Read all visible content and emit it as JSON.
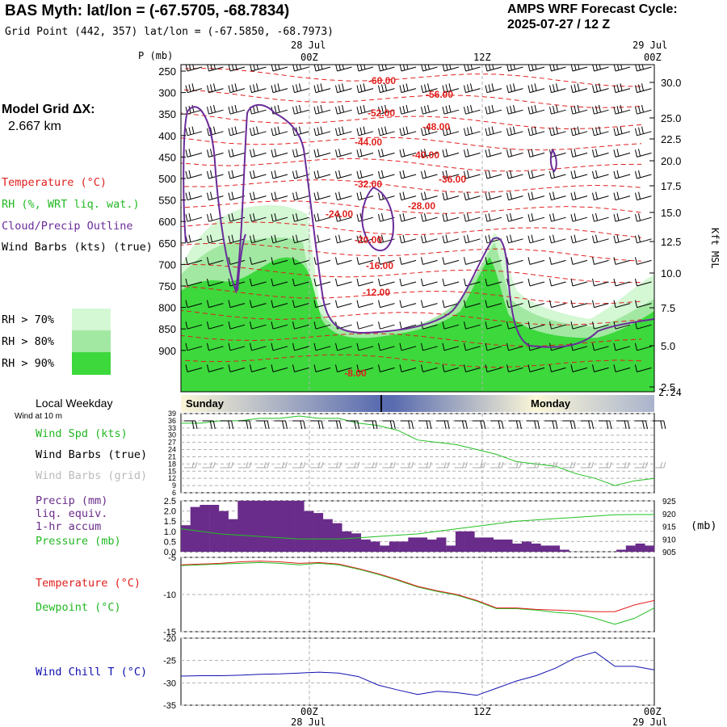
{
  "header": {
    "station_title": "BAS Myth:  lat/lon = (-67.5705, -68.7834)",
    "grid_point": "Grid Point (442, 357) lat/lon = (-67.5850, -68.7973)",
    "forecast_label": "AMPS WRF Forecast Cycle:",
    "forecast_cycle": "2025-07-27 / 12  Z",
    "model_grid_label": "Model Grid ΔX:",
    "model_grid_value": "2.667 km"
  },
  "time_axis": {
    "date_labels": [
      "28 Jul",
      "29 Jul"
    ],
    "hour_labels": [
      "00Z",
      "12Z",
      "00Z"
    ]
  },
  "legend": {
    "temperature": "Temperature (°C)",
    "rh": "RH (%, WRT liq. wat.)",
    "cloud": "Cloud/Precip Outline",
    "wind_barbs": "Wind Barbs (kts) (true)",
    "rh_levels": [
      "RH > 70%",
      "RH > 80%",
      "RH > 90%"
    ]
  },
  "colors": {
    "rh70": "#d4f7d4",
    "rh80": "#a2e8a2",
    "rh90": "#3cd83c",
    "temperature": "#e0201e",
    "dewpoint": "#22c022",
    "cloud": "#6a2c9a",
    "windchill": "#1010b0",
    "precip": "#6a2c8a",
    "pressure_line": "#22c022"
  },
  "chart_data": [
    {
      "type": "contour",
      "name": "cross-section",
      "y_axis_title": "P (mb)",
      "pressure_ticks": [
        "250",
        "300",
        "350",
        "400",
        "450",
        "500",
        "550",
        "600",
        "650",
        "700",
        "750",
        "800",
        "850",
        "900"
      ],
      "right_axis_title": "Kft MSL",
      "height_ticks": [
        "30.0",
        "25.0",
        "22.5",
        "20.0",
        "17.5",
        "15.0",
        "12.5",
        "10.0",
        "7.5",
        "5.0",
        "2.5"
      ],
      "surface_height": "2.24",
      "temperature_labels": [
        "-60.00",
        "-56.00",
        "-52.00",
        "-48.00",
        "-44.00",
        "-40.00",
        "-36.00",
        "-32.00",
        "-28.00",
        "-24.00",
        "-20.00",
        "-16.00",
        "-12.00",
        "-8.00"
      ]
    },
    {
      "type": "bar",
      "name": "local-weekday",
      "label": "Local Weekday",
      "days": [
        "Sunday",
        "Monday"
      ]
    },
    {
      "type": "line",
      "name": "wind-10m",
      "subtitle": "Wind at 10 m",
      "ylabel_speed": "Wind Spd (kts)",
      "ylabel_true": "Wind Barbs (true)",
      "ylabel_grid": "Wind Barbs (grid)",
      "ylim": [
        6,
        39
      ],
      "yticks": [
        "39",
        "36",
        "33",
        "30",
        "27",
        "24",
        "21",
        "18",
        "15",
        "12",
        "9",
        "6"
      ],
      "x": [
        0,
        1,
        2,
        3,
        4,
        5,
        6,
        7,
        8,
        9,
        10,
        11,
        12,
        13,
        14,
        15,
        16,
        17,
        18,
        19,
        20,
        21,
        22,
        23,
        24
      ],
      "speed": [
        35,
        35,
        36,
        36,
        37,
        37,
        38,
        37,
        37,
        35,
        34,
        32,
        28,
        27,
        26,
        24,
        22,
        19,
        18,
        17,
        14,
        12,
        9,
        11,
        12
      ]
    },
    {
      "type": "bar",
      "name": "precip-pressure",
      "ylabel_precip": [
        "Precip (mm)",
        "liq. equiv.",
        "1-hr accum"
      ],
      "ylabel_pressure": "Pressure (mb)",
      "pressure_unit": "(mb)",
      "precip_ticks": [
        "2.5",
        "2.0",
        "1.5",
        "1.0",
        "0.5",
        "0.0"
      ],
      "pressure_ticks": [
        "925",
        "920",
        "915",
        "910",
        "905"
      ],
      "precip_ylim": [
        0,
        2.5
      ],
      "pressure_ylim": [
        905,
        925
      ],
      "precip": [
        1.3,
        2.2,
        2.3,
        2.3,
        2.0,
        1.6,
        2.5,
        2.5,
        2.5,
        2.5,
        2.5,
        2.5,
        2.5,
        2.0,
        1.9,
        1.6,
        1.4,
        1.0,
        0.9,
        0.6,
        0.5,
        0.3,
        0.5,
        0.5,
        0.7,
        0.7,
        0.6,
        0.7,
        0.3,
        1.0,
        1.0,
        0.7,
        0.7,
        0.6,
        0.6,
        0.4,
        0.5,
        0.4,
        0.3,
        0.3,
        0.1,
        0.0,
        0.0,
        0.0,
        0.0,
        0.0,
        0.1,
        0.3,
        0.4,
        0.3
      ],
      "pressure": [
        914,
        913,
        912,
        911.5,
        911,
        910.5,
        910,
        910,
        910,
        910.5,
        911,
        911.5,
        912,
        913,
        914,
        915,
        916,
        917,
        917.5,
        918,
        918.5,
        919,
        919.5,
        919.6,
        919.6
      ]
    },
    {
      "type": "line",
      "name": "temperature-dewpoint",
      "series_labels": [
        "Temperature (°C)",
        "Dewpoint (°C)"
      ],
      "yticks": [
        "-5",
        "-10",
        "-15"
      ],
      "ylim": [
        -15,
        -5
      ],
      "x": [
        0,
        1,
        2,
        3,
        4,
        5,
        6,
        7,
        8,
        9,
        10,
        11,
        12,
        13,
        14,
        15,
        16,
        17,
        18,
        19,
        20,
        21,
        22,
        23,
        24
      ],
      "temperature": [
        -6.0,
        -5.9,
        -5.8,
        -5.6,
        -5.5,
        -5.6,
        -5.8,
        -5.7,
        -5.9,
        -6.5,
        -7.2,
        -8.0,
        -8.9,
        -9.5,
        -10.0,
        -10.8,
        -11.8,
        -11.8,
        -12.0,
        -12.1,
        -12.2,
        -12.3,
        -12.3,
        -11.4,
        -10.8
      ],
      "dewpoint": [
        -6.1,
        -6.0,
        -5.9,
        -5.8,
        -5.7,
        -5.8,
        -6.0,
        -5.8,
        -6.0,
        -6.6,
        -7.3,
        -8.1,
        -9.0,
        -9.6,
        -10.1,
        -10.9,
        -11.9,
        -11.9,
        -12.1,
        -12.4,
        -12.6,
        -13.2,
        -14.0,
        -13.2,
        -11.8
      ]
    },
    {
      "type": "line",
      "name": "wind-chill",
      "series_labels": [
        "Wind Chill T (°C)"
      ],
      "yticks": [
        "-20",
        "-25",
        "-30",
        "-35"
      ],
      "ylim": [
        -35,
        -20
      ],
      "x": [
        0,
        1,
        2,
        3,
        4,
        5,
        6,
        7,
        8,
        9,
        10,
        11,
        12,
        13,
        14,
        15,
        16,
        17,
        18,
        19,
        20,
        21,
        22,
        23,
        24
      ],
      "windchill": [
        -28.5,
        -28.4,
        -28.4,
        -28.3,
        -28.1,
        -28.0,
        -27.8,
        -27.6,
        -27.8,
        -28.6,
        -30.5,
        -31.6,
        -32.6,
        -31.9,
        -32.2,
        -32.8,
        -31.2,
        -29.6,
        -28.4,
        -26.7,
        -24.4,
        -23.1,
        -26.3,
        -26.3,
        -27.1
      ]
    }
  ]
}
